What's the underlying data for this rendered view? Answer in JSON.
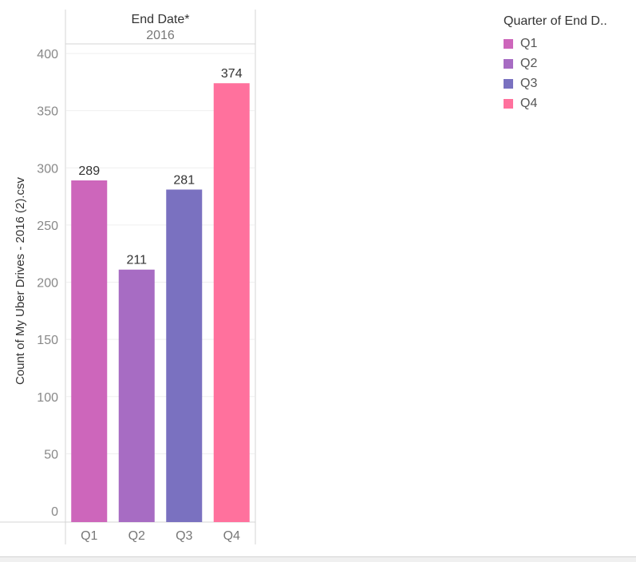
{
  "chart_data": {
    "type": "bar",
    "header_title": "End Date*",
    "header_subtitle": "2016",
    "ylabel": "Count of My Uber Drives - 2016 (2).csv",
    "xlabel": "",
    "categories": [
      "Q1",
      "Q2",
      "Q3",
      "Q4"
    ],
    "values": [
      289,
      211,
      281,
      374
    ],
    "colors": [
      "#cd66bb",
      "#a76cc3",
      "#7a71c0",
      "#ff719d"
    ],
    "ylim": [
      0,
      400
    ],
    "yticks": [
      0,
      50,
      100,
      150,
      200,
      250,
      300,
      350,
      400
    ],
    "grid": true,
    "legend": {
      "title": "Quarter of End D..",
      "position": "top-right",
      "items": [
        "Q1",
        "Q2",
        "Q3",
        "Q4"
      ]
    }
  }
}
